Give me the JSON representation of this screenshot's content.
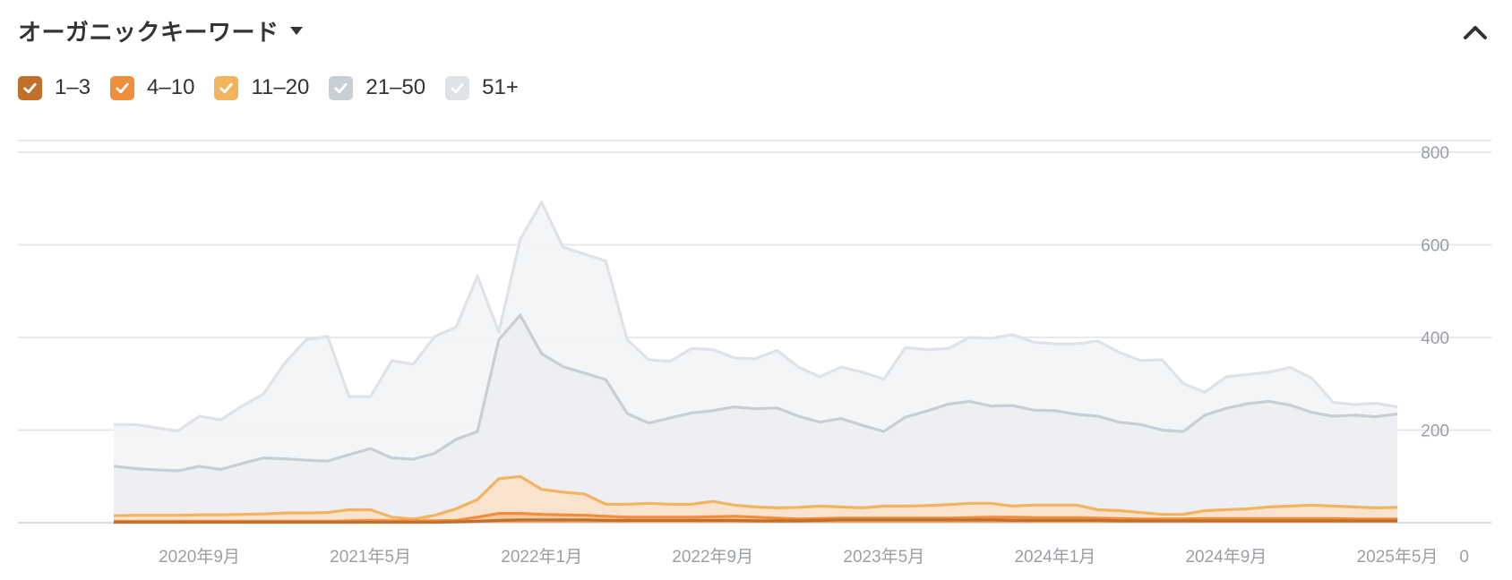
{
  "header": {
    "title": "オーガニックキーワード",
    "dropdown_icon": "caret-down-icon",
    "collapse_icon": "chevron-up-icon"
  },
  "legend": [
    {
      "label": "1–3",
      "color": "#c0702b",
      "checked": true
    },
    {
      "label": "4–10",
      "color": "#ef8e3c",
      "checked": true
    },
    {
      "label": "11–20",
      "color": "#f2b45f",
      "checked": true
    },
    {
      "label": "21–50",
      "color": "#c8ced6",
      "checked": true
    },
    {
      "label": "51+",
      "color": "#dfe3e8",
      "checked": true
    }
  ],
  "chart_data": {
    "type": "area",
    "stacked": false,
    "x": [
      "2020-05",
      "2020-06",
      "2020-07",
      "2020-08",
      "2020-09",
      "2020-10",
      "2020-11",
      "2020-12",
      "2021-01",
      "2021-02",
      "2021-03",
      "2021-04",
      "2021-05",
      "2021-06",
      "2021-07",
      "2021-08",
      "2021-09",
      "2021-10",
      "2021-11",
      "2021-12",
      "2022-01",
      "2022-02",
      "2022-03",
      "2022-04",
      "2022-05",
      "2022-06",
      "2022-07",
      "2022-08",
      "2022-09",
      "2022-10",
      "2022-11",
      "2022-12",
      "2023-01",
      "2023-02",
      "2023-03",
      "2023-04",
      "2023-05",
      "2023-06",
      "2023-07",
      "2023-08",
      "2023-09",
      "2023-10",
      "2023-11",
      "2023-12",
      "2024-01",
      "2024-02",
      "2024-03",
      "2024-04",
      "2024-05",
      "2024-06",
      "2024-07",
      "2024-08",
      "2024-09",
      "2024-10",
      "2024-11",
      "2024-12",
      "2025-01",
      "2025-02",
      "2025-03",
      "2025-04",
      "2025-05"
    ],
    "x_ticks": [
      "2020年9月",
      "2021年5月",
      "2022年1月",
      "2022年9月",
      "2023年5月",
      "2024年1月",
      "2024年9月",
      "2025年5月"
    ],
    "x_tick_values": [
      "2020-09",
      "2021-05",
      "2022-01",
      "2022-09",
      "2023-05",
      "2024-01",
      "2024-09",
      "2025-05"
    ],
    "y_ticks": [
      "0",
      "200",
      "400",
      "600",
      "800"
    ],
    "y_tick_values": [
      0,
      200,
      400,
      600,
      800
    ],
    "ylim": [
      0,
      800
    ],
    "grid": true,
    "y_axis_position": "right",
    "series": [
      {
        "name": "51+",
        "color": "#dfe3e8",
        "fill": "#f3f4f6",
        "values": [
          212,
          212,
          205,
          198,
          230,
          222,
          252,
          278,
          345,
          395,
          402,
          272,
          272,
          350,
          342,
          402,
          422,
          532,
          412,
          612,
          692,
          595,
          580,
          565,
          395,
          352,
          348,
          376,
          374,
          356,
          354,
          372,
          336,
          315,
          336,
          325,
          310,
          378,
          374,
          376,
          400,
          398,
          406,
          390,
          386,
          386,
          392,
          368,
          350,
          352,
          300,
          282,
          315,
          320,
          325,
          335,
          312,
          260,
          255,
          258,
          250
        ]
      },
      {
        "name": "21–50",
        "color": "#c8ced6",
        "fill": "#eceef2",
        "values": [
          122,
          117,
          114,
          112,
          122,
          115,
          128,
          140,
          138,
          135,
          133,
          147,
          160,
          140,
          137,
          150,
          180,
          197,
          395,
          448,
          365,
          337,
          323,
          309,
          236,
          215,
          226,
          237,
          242,
          250,
          246,
          248,
          230,
          217,
          225,
          210,
          197,
          228,
          241,
          256,
          262,
          252,
          253,
          243,
          242,
          234,
          230,
          217,
          212,
          200,
          197,
          232,
          247,
          257,
          262,
          254,
          238,
          230,
          232,
          229,
          235
        ]
      },
      {
        "name": "11–20",
        "color": "#f2b45f",
        "fill": "#fbe2cb",
        "values": [
          15,
          16,
          16,
          16,
          17,
          17,
          18,
          19,
          21,
          21,
          22,
          28,
          28,
          12,
          8,
          16,
          30,
          50,
          95,
          100,
          72,
          66,
          62,
          40,
          40,
          42,
          40,
          40,
          46,
          38,
          34,
          32,
          33,
          36,
          34,
          32,
          36,
          36,
          37,
          39,
          42,
          42,
          36,
          38,
          38,
          38,
          28,
          26,
          22,
          18,
          18,
          26,
          28,
          30,
          34,
          36,
          38,
          36,
          34,
          32,
          33
        ]
      },
      {
        "name": "4–10",
        "color": "#ef8e3c",
        "fill": "#f6c79c",
        "values": [
          3,
          3,
          3,
          3,
          3,
          3,
          3,
          3,
          3,
          3,
          3,
          4,
          5,
          4,
          4,
          4,
          5,
          12,
          20,
          20,
          18,
          17,
          16,
          14,
          12,
          12,
          12,
          12,
          13,
          14,
          12,
          10,
          8,
          9,
          10,
          10,
          10,
          10,
          10,
          10,
          11,
          12,
          12,
          11,
          11,
          11,
          10,
          9,
          8,
          8,
          8,
          9,
          9,
          9,
          9,
          9,
          9,
          9,
          8,
          8,
          8
        ]
      },
      {
        "name": "1–3",
        "color": "#c0702b",
        "fill": "#e8a972",
        "values": [
          1,
          1,
          1,
          1,
          1,
          1,
          1,
          1,
          1,
          1,
          1,
          1,
          1,
          1,
          1,
          1,
          2,
          3,
          5,
          6,
          6,
          6,
          6,
          5,
          5,
          5,
          5,
          5,
          5,
          5,
          4,
          4,
          4,
          5,
          6,
          6,
          6,
          6,
          6,
          6,
          6,
          6,
          5,
          5,
          5,
          5,
          5,
          4,
          4,
          4,
          4,
          4,
          4,
          4,
          4,
          4,
          4,
          4,
          4,
          4,
          4
        ]
      }
    ]
  }
}
